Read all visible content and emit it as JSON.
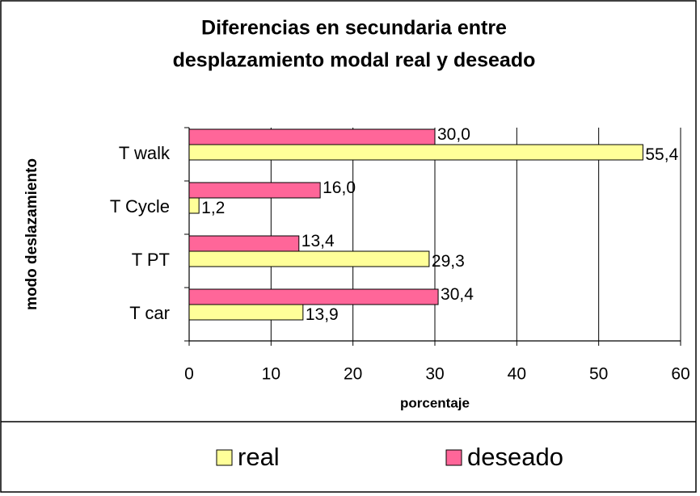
{
  "chart_data": {
    "type": "hbar",
    "title": [
      "Diferencias en secundaria entre",
      "desplazamiento modal real y deseado"
    ],
    "categories": [
      "T walk",
      "T Cycle",
      "T PT",
      "T car"
    ],
    "series": [
      {
        "name": "real",
        "color": "#ffff99",
        "values": [
          55.4,
          1.2,
          29.3,
          13.9
        ],
        "value_labels": [
          "55,4",
          "1,2",
          "29,3",
          "13,9"
        ]
      },
      {
        "name": "deseado",
        "color": "#ff6699",
        "values": [
          30.0,
          16.0,
          13.4,
          30.4
        ],
        "value_labels": [
          "30,0",
          "16,0",
          "13,4",
          "30,4"
        ]
      }
    ],
    "xlim": [
      0,
      60
    ],
    "xticks": [
      0,
      10,
      20,
      30,
      40,
      50,
      60
    ],
    "x_label": "porcentaje",
    "y_label": "modo deslazamiento",
    "grid": true,
    "legend": "bottom"
  }
}
